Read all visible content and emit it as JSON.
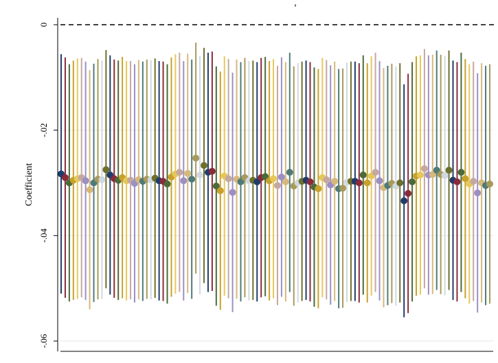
{
  "chart_data": {
    "type": "scatter",
    "title": ", ",
    "ylabel": "Coefficient",
    "xlabel": "",
    "ylim": [
      -0.062,
      0.001
    ],
    "yticks": [
      0,
      -0.02,
      -0.04,
      -0.06
    ],
    "ytick_labels": [
      "0",
      "-.02",
      "-.04",
      "-.06"
    ],
    "reference_line": {
      "y": 0,
      "style": "dashed"
    },
    "grid": "horizontal",
    "legend": "none",
    "colors": [
      "#1f3d6b",
      "#8b2a3a",
      "#4a6b3a",
      "#c9a02a",
      "#e5c85a",
      "#c4a8a0",
      "#9b8fc4",
      "#d6b87a",
      "#4f7a7a",
      "#a89a5a",
      "#cfd8e0",
      "#6e6f2a"
    ],
    "series": [
      {
        "estimate": [
          -0.0283,
          -0.029,
          -0.03,
          -0.0295,
          -0.0292,
          -0.029,
          -0.0296,
          -0.0313,
          -0.03,
          -0.0293,
          -0.0294,
          -0.0275,
          -0.0285,
          -0.0292,
          -0.0295,
          -0.029,
          -0.0296,
          -0.0295,
          -0.0301,
          -0.0294,
          -0.0297,
          -0.0293,
          -0.0294,
          -0.0291,
          -0.0296,
          -0.0297,
          -0.0302,
          -0.0289,
          -0.0283,
          -0.028,
          -0.0296,
          -0.0282,
          -0.0293,
          -0.0253,
          -0.0285,
          -0.0267,
          -0.028,
          -0.0278,
          -0.0306,
          -0.0315,
          -0.0287,
          -0.0292,
          -0.0318,
          -0.0293,
          -0.0298,
          -0.029,
          -0.0296,
          -0.0295,
          -0.0298,
          -0.029,
          -0.0288,
          -0.0296,
          -0.0292,
          -0.0305,
          -0.0289,
          -0.0298,
          -0.028,
          -0.0306,
          -0.03,
          -0.0297,
          -0.0295,
          -0.0298,
          -0.0308,
          -0.0311,
          -0.029,
          -0.0294,
          -0.0304,
          -0.0297,
          -0.0311,
          -0.031,
          -0.0299,
          -0.0297,
          -0.0297,
          -0.03,
          -0.0285,
          -0.03,
          -0.0287,
          -0.028,
          -0.0296,
          -0.0309,
          -0.0305,
          -0.0301,
          -0.0306,
          -0.03,
          -0.0334,
          -0.032,
          -0.0298,
          -0.0287,
          -0.0285,
          -0.0273,
          -0.0285,
          -0.0284,
          -0.0276,
          -0.0284,
          -0.0286,
          -0.0276,
          -0.0295,
          -0.0298,
          -0.028,
          -0.0292,
          -0.0302,
          -0.0297,
          -0.0319,
          -0.03,
          -0.0305,
          -0.0302
        ],
        "ci_low": [
          -0.051,
          -0.0518,
          -0.0525,
          -0.0522,
          -0.052,
          -0.0517,
          -0.0522,
          -0.054,
          -0.0526,
          -0.0521,
          -0.052,
          -0.05,
          -0.0512,
          -0.0518,
          -0.0522,
          -0.0519,
          -0.0523,
          -0.0521,
          -0.0527,
          -0.0521,
          -0.0524,
          -0.052,
          -0.0521,
          -0.0518,
          -0.0523,
          -0.0524,
          -0.0529,
          -0.0516,
          -0.051,
          -0.0507,
          -0.0523,
          -0.0509,
          -0.052,
          -0.0472,
          -0.0511,
          -0.049,
          -0.0507,
          -0.0505,
          -0.0533,
          -0.0541,
          -0.0514,
          -0.0519,
          -0.0545,
          -0.052,
          -0.0525,
          -0.0517,
          -0.0523,
          -0.0522,
          -0.0525,
          -0.0517,
          -0.0515,
          -0.0523,
          -0.0519,
          -0.0532,
          -0.0516,
          -0.0525,
          -0.0507,
          -0.0533,
          -0.0527,
          -0.0524,
          -0.0522,
          -0.0525,
          -0.0535,
          -0.0538,
          -0.0517,
          -0.0521,
          -0.0531,
          -0.0524,
          -0.0538,
          -0.0537,
          -0.0526,
          -0.0524,
          -0.0524,
          -0.0527,
          -0.0512,
          -0.0527,
          -0.0514,
          -0.0507,
          -0.0523,
          -0.0536,
          -0.0532,
          -0.0528,
          -0.0533,
          -0.0527,
          -0.0555,
          -0.0547,
          -0.0525,
          -0.0514,
          -0.0512,
          -0.05,
          -0.0512,
          -0.0511,
          -0.0503,
          -0.0511,
          -0.0513,
          -0.0503,
          -0.0522,
          -0.0525,
          -0.0507,
          -0.0519,
          -0.0529,
          -0.0524,
          -0.0546,
          -0.0527,
          -0.0532,
          -0.0529
        ],
        "ci_high": [
          -0.0056,
          -0.0062,
          -0.0075,
          -0.0068,
          -0.0064,
          -0.0063,
          -0.007,
          -0.0086,
          -0.0074,
          -0.0065,
          -0.0068,
          -0.0048,
          -0.0058,
          -0.0066,
          -0.0068,
          -0.0061,
          -0.0069,
          -0.0069,
          -0.0075,
          -0.0067,
          -0.007,
          -0.0066,
          -0.0067,
          -0.0064,
          -0.0069,
          -0.007,
          -0.0075,
          -0.0062,
          -0.0056,
          -0.0053,
          -0.0069,
          -0.0055,
          -0.0066,
          -0.0034,
          -0.0059,
          -0.0044,
          -0.0053,
          -0.0051,
          -0.0079,
          -0.0089,
          -0.006,
          -0.0065,
          -0.0091,
          -0.0066,
          -0.0071,
          -0.0063,
          -0.0069,
          -0.0068,
          -0.0071,
          -0.0063,
          -0.0061,
          -0.0069,
          -0.0065,
          -0.0078,
          -0.0062,
          -0.0071,
          -0.0053,
          -0.0079,
          -0.0073,
          -0.007,
          -0.0068,
          -0.0071,
          -0.0081,
          -0.0084,
          -0.0063,
          -0.0067,
          -0.0077,
          -0.007,
          -0.0084,
          -0.0083,
          -0.0072,
          -0.007,
          -0.007,
          -0.0073,
          -0.0058,
          -0.0073,
          -0.006,
          -0.0053,
          -0.0069,
          -0.0082,
          -0.0078,
          -0.0074,
          -0.0079,
          -0.0073,
          -0.0113,
          -0.0093,
          -0.0071,
          -0.006,
          -0.0058,
          -0.0046,
          -0.0058,
          -0.0057,
          -0.0049,
          -0.0057,
          -0.0059,
          -0.0049,
          -0.0068,
          -0.0071,
          -0.0053,
          -0.0065,
          -0.0075,
          -0.007,
          -0.0092,
          -0.0073,
          -0.0078,
          -0.0075
        ]
      }
    ]
  }
}
